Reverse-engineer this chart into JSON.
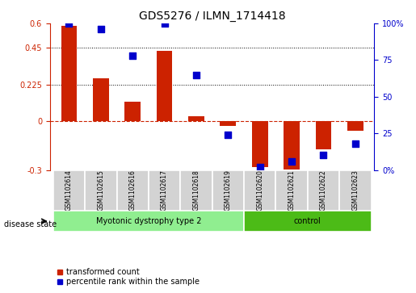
{
  "title": "GDS5276 / ILMN_1714418",
  "samples": [
    "GSM1102614",
    "GSM1102615",
    "GSM1102616",
    "GSM1102617",
    "GSM1102618",
    "GSM1102619",
    "GSM1102620",
    "GSM1102621",
    "GSM1102622",
    "GSM1102623"
  ],
  "bar_values": [
    0.585,
    0.265,
    0.12,
    0.43,
    0.03,
    -0.03,
    -0.28,
    -0.295,
    -0.175,
    -0.06
  ],
  "dot_values": [
    100,
    96,
    78,
    100,
    65,
    24,
    2,
    6,
    10,
    18
  ],
  "disease_groups": [
    {
      "label": "Myotonic dystrophy type 2",
      "start": 0,
      "end": 6,
      "color": "#90ee90"
    },
    {
      "label": "control",
      "start": 6,
      "end": 10,
      "color": "#4cbb17"
    }
  ],
  "bar_color": "#cc2200",
  "dot_color": "#0000cc",
  "ylim_left": [
    -0.3,
    0.6
  ],
  "ylim_right": [
    0,
    100
  ],
  "yticks_left": [
    -0.3,
    0,
    0.225,
    0.45,
    0.6
  ],
  "yticks_right": [
    0,
    25,
    50,
    75,
    100
  ],
  "ytick_labels_left": [
    "-0.3",
    "0",
    "0.225",
    "0.45",
    "0.6"
  ],
  "ytick_labels_right": [
    "0%",
    "25",
    "50",
    "75",
    "100%"
  ],
  "hlines": [
    0.225,
    0.45
  ],
  "zero_line": 0,
  "legend_items": [
    "transformed count",
    "percentile rank within the sample"
  ],
  "disease_state_label": "disease state",
  "dot_size": 40,
  "bar_width": 0.5
}
